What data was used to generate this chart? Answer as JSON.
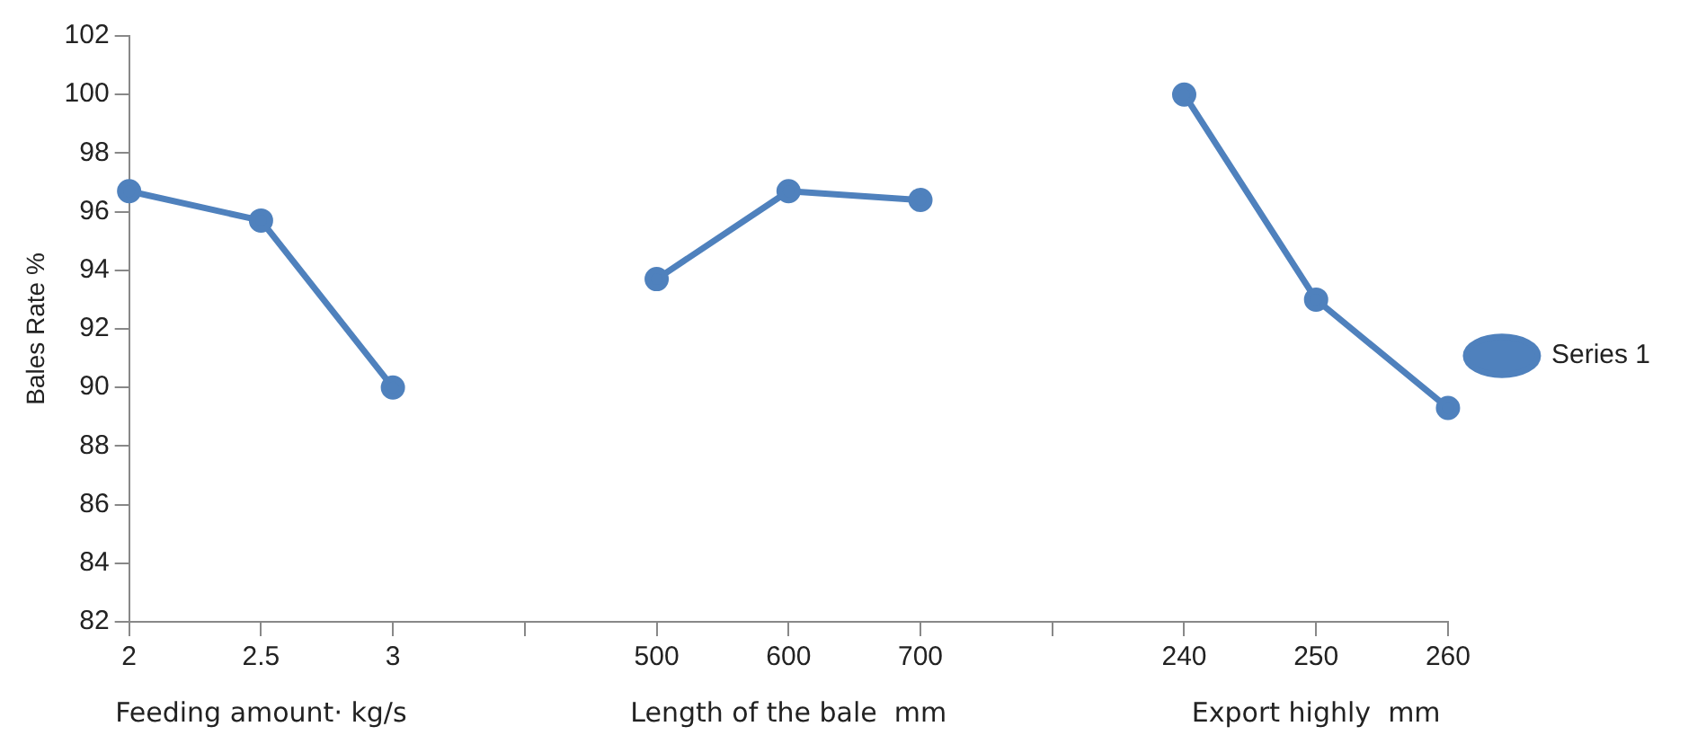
{
  "chart_data": {
    "type": "line",
    "ylabel": "Bales Rate %",
    "categories": [
      "2",
      "2.5",
      "3",
      null,
      "500",
      "600",
      "700",
      null,
      "240",
      "250",
      "260"
    ],
    "series": [
      {
        "name": "Series 1",
        "color": "#4f81bd",
        "values": [
          96.7,
          95.7,
          90.0,
          null,
          93.7,
          96.7,
          96.4,
          null,
          100.0,
          93.0,
          89.3
        ]
      }
    ],
    "ylim": [
      82,
      102
    ],
    "yticks": [
      82,
      84,
      86,
      88,
      90,
      92,
      94,
      96,
      98,
      100,
      102
    ],
    "grid": false,
    "legend": "right",
    "marker": "circle",
    "line_style": "solid",
    "annotations": [
      "Feeding amount· kg/s",
      "Length of the bale  mm",
      "Export highly  mm"
    ]
  }
}
